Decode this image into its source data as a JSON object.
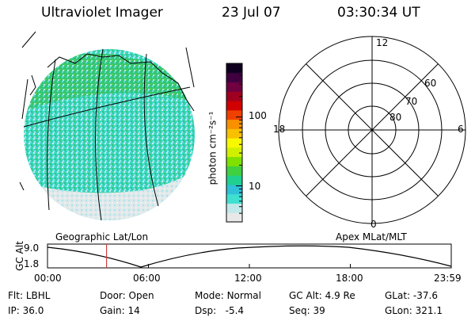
{
  "header": {
    "instrument": "Ultraviolet Imager",
    "date": "23 Jul 07",
    "time": "03:30:34 UT"
  },
  "left_panel": {
    "label": "Geographic Lat/Lon"
  },
  "colorbar": {
    "unit_label": "photon cm⁻²s⁻¹",
    "scale": "log",
    "ticks": [
      {
        "value": 10,
        "label": "10"
      },
      {
        "value": 100,
        "label": "100"
      }
    ],
    "range": [
      3,
      600
    ],
    "colors": [
      "#e8e8e8",
      "#c0e8e8",
      "#40e0d0",
      "#30c0d8",
      "#20d090",
      "#40d040",
      "#80e000",
      "#d0f000",
      "#f8f800",
      "#f8c000",
      "#f89000",
      "#f04000",
      "#d00000",
      "#a00020",
      "#700040",
      "#400040",
      "#100020"
    ]
  },
  "right_panel": {
    "label": "Apex MLat/MLT",
    "mlt_labels": {
      "top": "12",
      "bottom": "0",
      "left": "18",
      "right": "6"
    },
    "mlat_labels": [
      "60",
      "70",
      "80"
    ]
  },
  "altitude_plot": {
    "ylabel": "GC Alt",
    "yticks": [
      "9.0",
      "1.8"
    ],
    "xticks": [
      "00:00",
      "06:00",
      "12:00",
      "18:00",
      "23:59"
    ],
    "current_time_hours": 3.51,
    "marker_color": "#d04040"
  },
  "status": {
    "flt": {
      "label": "Flt:",
      "value": "LBHL"
    },
    "ip": {
      "label": "IP:",
      "value": "36.0"
    },
    "door": {
      "label": "Door:",
      "value": "Open"
    },
    "gain": {
      "label": "Gain:",
      "value": "14"
    },
    "mode": {
      "label": "Mode:",
      "value": "Normal"
    },
    "dsp": {
      "label": "Dsp:",
      "value": "-5.4"
    },
    "gcalt": {
      "label": "GC Alt:",
      "value": "4.9 Re"
    },
    "seq": {
      "label": "Seq:",
      "value": "39"
    },
    "glat": {
      "label": "GLat:",
      "value": "-37.6"
    },
    "glon": {
      "label": "GLon:",
      "value": "321.1"
    }
  }
}
